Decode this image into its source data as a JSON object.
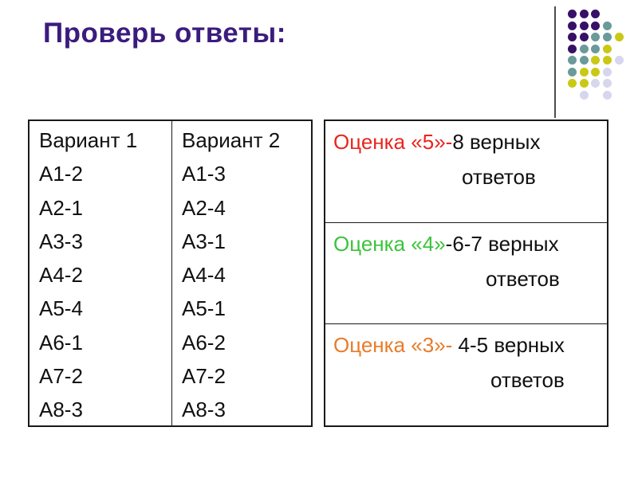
{
  "title": "Проверь ответы:",
  "colors": {
    "title": "#3b1c7d",
    "text": "#111111",
    "border": "#1a1a1a",
    "grade5": "#e8261f",
    "grade4": "#3cc33c",
    "grade3": "#e87c2a"
  },
  "answers_table": {
    "columns": [
      {
        "header": "Вариант 1",
        "rows": [
          "А1-2",
          "А2-1",
          "А3-3",
          "А4-2",
          "А5-4",
          "А6-1",
          "А7-2",
          "А8-3"
        ]
      },
      {
        "header": "Вариант 2",
        "rows": [
          "А1-3",
          "А2-4",
          "А3-1",
          "А4-4",
          "А5-1",
          "А6-2",
          "А7-2",
          "А8-3"
        ]
      }
    ]
  },
  "grades": [
    {
      "label": "Оценка «5»-",
      "label_color": "#e8261f",
      "rest": "8 верных",
      "line2": "ответов"
    },
    {
      "label": "Оценка «4»",
      "label_color": "#3cc33c",
      "rest": "-6-7 верных",
      "line2": "ответов"
    },
    {
      "label": "Оценка «3»-",
      "label_color": "#e87c2a",
      "rest": " 4-5 верных",
      "line2": "ответов"
    }
  ],
  "decoration": {
    "dot_palette": {
      "P": "#371166",
      "T": "#6a9a9a",
      "Y": "#c9c915",
      "L": "#d6d6ec"
    },
    "dot_grid": [
      "PPP..",
      "PPPT.",
      "PPTTY",
      "PTTY.",
      "TTYYL",
      "TYYL.",
      "YYLL.",
      ".L.L."
    ]
  }
}
